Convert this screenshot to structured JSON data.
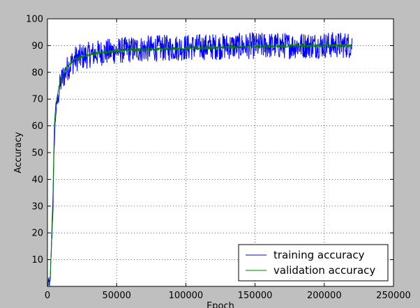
{
  "chart_data": {
    "type": "line",
    "title": "",
    "xlabel": "Epoch",
    "ylabel": "Accuracy",
    "xlim": [
      0,
      250000
    ],
    "ylim": [
      0,
      100
    ],
    "xticks": [
      0,
      50000,
      100000,
      150000,
      200000,
      250000
    ],
    "yticks": [
      10,
      20,
      30,
      40,
      50,
      60,
      70,
      80,
      90,
      100
    ],
    "grid": true,
    "legend_position": "lower-right",
    "series": [
      {
        "name": "training accuracy",
        "color": "#0000ff",
        "noise": 5,
        "x": [
          0,
          2000,
          4000,
          5000,
          6000,
          8000,
          10000,
          15000,
          20000,
          30000,
          40000,
          50000,
          60000,
          80000,
          100000,
          120000,
          140000,
          160000,
          180000,
          200000,
          220000
        ],
        "y": [
          0,
          2,
          30,
          55,
          65,
          72,
          77,
          82,
          85,
          86.5,
          87.5,
          88,
          88.5,
          89,
          89.3,
          89.6,
          89.8,
          90,
          90,
          90.2,
          90.2
        ]
      },
      {
        "name": "validation accuracy",
        "color": "#008000",
        "noise": 0.6,
        "x": [
          0,
          2000,
          4000,
          5000,
          6000,
          8000,
          10000,
          15000,
          20000,
          30000,
          40000,
          50000,
          60000,
          80000,
          100000,
          120000,
          140000,
          160000,
          180000,
          200000,
          220000
        ],
        "y": [
          0,
          2,
          35,
          60,
          68,
          74,
          78,
          82.5,
          85,
          86.5,
          87.5,
          88,
          88.3,
          88.7,
          89,
          89.2,
          89.5,
          89.8,
          89.9,
          90,
          90
        ]
      }
    ]
  }
}
